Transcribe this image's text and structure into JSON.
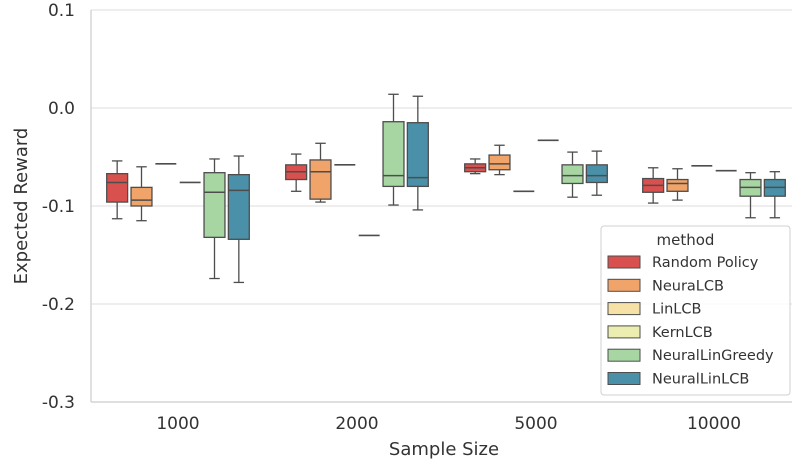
{
  "chart_data": {
    "type": "box",
    "xlabel": "Sample Size",
    "ylabel": "Expected Reward",
    "categories": [
      "1000",
      "2000",
      "5000",
      "10000"
    ],
    "ylim": [
      -0.3,
      0.1
    ],
    "yticks": [
      0.1,
      0.0,
      -0.1,
      -0.2,
      -0.3
    ],
    "ytick_labels": [
      "0.1",
      "0.0",
      "-0.1",
      "-0.2",
      "-0.3"
    ],
    "grid": "horizontal",
    "legend": {
      "title": "method",
      "position": "lower-right"
    },
    "series": [
      {
        "name": "Random Policy",
        "color": "#d9514e",
        "boxes": [
          {
            "min": -0.113,
            "q1": -0.096,
            "median": -0.076,
            "q3": -0.067,
            "max": -0.054
          },
          {
            "min": -0.085,
            "q1": -0.073,
            "median": -0.065,
            "q3": -0.058,
            "max": -0.047
          },
          {
            "min": -0.067,
            "q1": -0.065,
            "median": -0.061,
            "q3": -0.057,
            "max": -0.052
          },
          {
            "min": -0.097,
            "q1": -0.086,
            "median": -0.079,
            "q3": -0.072,
            "max": -0.061
          }
        ]
      },
      {
        "name": "NeuraLCB",
        "color": "#f0a46a",
        "boxes": [
          {
            "min": -0.115,
            "q1": -0.1,
            "median": -0.094,
            "q3": -0.081,
            "max": -0.06
          },
          {
            "min": -0.096,
            "q1": -0.093,
            "median": -0.065,
            "q3": -0.053,
            "max": -0.036
          },
          {
            "min": -0.068,
            "q1": -0.063,
            "median": -0.057,
            "q3": -0.048,
            "max": -0.038
          },
          {
            "min": -0.094,
            "q1": -0.085,
            "median": -0.077,
            "q3": -0.073,
            "max": -0.062
          }
        ]
      },
      {
        "name": "LinLCB",
        "color": "#f6e2a6",
        "boxes": [
          {
            "value": -0.057
          },
          {
            "value": -0.058
          },
          {
            "value": -0.085
          },
          {
            "value": -0.059
          }
        ]
      },
      {
        "name": "KernLCB",
        "color": "#ecedb1",
        "boxes": [
          {
            "value": -0.076
          },
          {
            "value": -0.13
          },
          {
            "value": -0.033
          },
          {
            "value": -0.064
          }
        ]
      },
      {
        "name": "NeuralLinGreedy",
        "color": "#a8d6a3",
        "boxes": [
          {
            "min": -0.174,
            "q1": -0.132,
            "median": -0.086,
            "q3": -0.066,
            "max": -0.052
          },
          {
            "min": -0.099,
            "q1": -0.08,
            "median": -0.069,
            "q3": -0.014,
            "max": 0.014
          },
          {
            "min": -0.091,
            "q1": -0.077,
            "median": -0.069,
            "q3": -0.058,
            "max": -0.045
          },
          {
            "min": -0.112,
            "q1": -0.09,
            "median": -0.081,
            "q3": -0.073,
            "max": -0.066
          }
        ]
      },
      {
        "name": "NeuralLinLCB",
        "color": "#4a90a8",
        "boxes": [
          {
            "min": -0.178,
            "q1": -0.134,
            "median": -0.084,
            "q3": -0.068,
            "max": -0.049
          },
          {
            "min": -0.104,
            "q1": -0.08,
            "median": -0.071,
            "q3": -0.015,
            "max": 0.012
          },
          {
            "min": -0.089,
            "q1": -0.076,
            "median": -0.069,
            "q3": -0.058,
            "max": -0.044
          },
          {
            "min": -0.112,
            "q1": -0.09,
            "median": -0.081,
            "q3": -0.073,
            "max": -0.065
          }
        ]
      }
    ]
  }
}
